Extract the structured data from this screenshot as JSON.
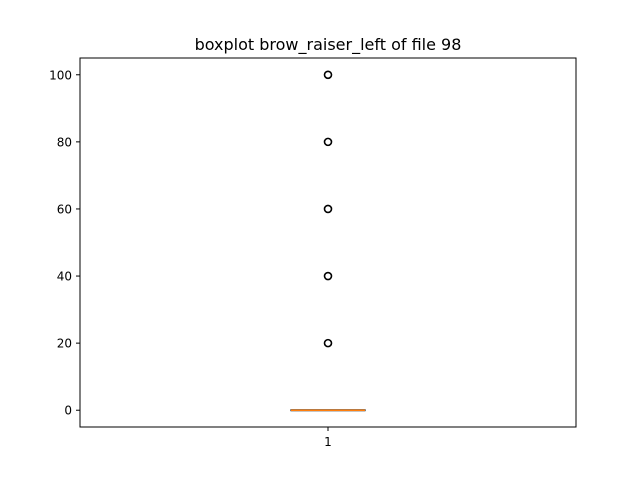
{
  "chart_data": {
    "type": "boxplot",
    "title": "boxplot brow_raiser_left of file 98",
    "xlabel": "",
    "ylabel": "",
    "categories": [
      "1"
    ],
    "ylim": [
      -5,
      105
    ],
    "yticks": [
      0,
      20,
      40,
      60,
      80,
      100
    ],
    "grid": false,
    "series": [
      {
        "q1": 0,
        "median": 0,
        "q3": 0,
        "whisker_low": 0,
        "whisker_high": 0,
        "outliers": [
          20,
          40,
          60,
          80,
          100
        ]
      }
    ],
    "colors": {
      "box": "#000000",
      "median": "#ff7f0e",
      "outlier": "#000000",
      "axes": "#000000"
    }
  }
}
